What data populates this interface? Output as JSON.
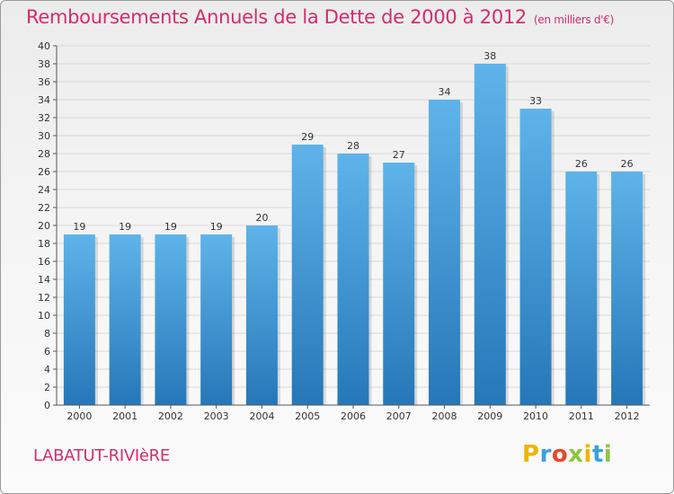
{
  "title": "Remboursements Annuels de la Dette de 2000 à 2012",
  "unit_note": "(en milliers d'€)",
  "location": "LABATUT-RIVIèRE",
  "logo": {
    "text": "Proxiti",
    "letters": [
      {
        "ch": "P",
        "color": "#f0b400"
      },
      {
        "ch": "r",
        "color": "#3aa0e0"
      },
      {
        "ch": "o",
        "color": "#e8472b"
      },
      {
        "ch": "x",
        "color": "#8cc63f"
      },
      {
        "ch": "i",
        "color": "#f0b400"
      },
      {
        "ch": "t",
        "color": "#3aa0e0"
      },
      {
        "ch": "i",
        "color": "#8cc63f"
      }
    ]
  },
  "colors": {
    "accent": "#d62b6d",
    "bar_top": "#5eb4ea",
    "bar_bottom": "#2677b8",
    "grid": "#d8d8d8"
  },
  "chart_data": {
    "type": "bar",
    "categories": [
      "2000",
      "2001",
      "2002",
      "2003",
      "2004",
      "2005",
      "2006",
      "2007",
      "2008",
      "2009",
      "2010",
      "2011",
      "2012"
    ],
    "values": [
      19,
      19,
      19,
      19,
      20,
      29,
      28,
      27,
      34,
      38,
      33,
      26,
      26
    ],
    "value_labels": [
      "19",
      "19",
      "19",
      "19",
      "20",
      "29",
      "28",
      "27",
      "34",
      "38",
      "33",
      "26",
      "26"
    ],
    "ylim": [
      0,
      40
    ],
    "yticks": [
      "0",
      "2",
      "4",
      "6",
      "8",
      "10",
      "12",
      "14",
      "16",
      "18",
      "20",
      "22",
      "24",
      "26",
      "28",
      "30",
      "32",
      "34",
      "36",
      "38",
      "40"
    ],
    "grid": true,
    "legend": "none"
  }
}
